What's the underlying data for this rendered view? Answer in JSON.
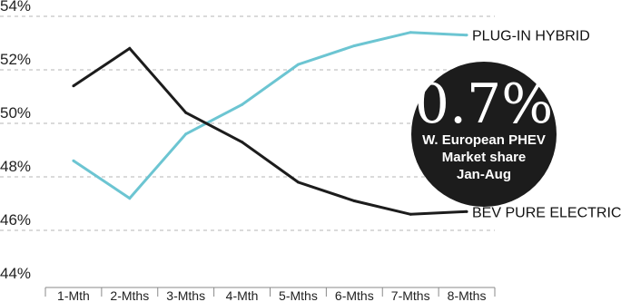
{
  "chart_data": {
    "type": "line",
    "categories": [
      "1-Mth",
      "2-Mths",
      "3-Mths",
      "4-Mth",
      "5-Mths",
      "6-Mths",
      "7-Mths",
      "8-Mths"
    ],
    "series": [
      {
        "name": "PLUG-IN HYBRID",
        "values": [
          48.6,
          47.2,
          49.6,
          50.7,
          52.2,
          52.9,
          53.4,
          53.3
        ],
        "color": "#6cc5d2"
      },
      {
        "name": "BEV PURE ELECTRIC",
        "values": [
          51.4,
          52.8,
          50.4,
          49.3,
          47.8,
          47.1,
          46.6,
          46.7
        ],
        "color": "#1c1c1c"
      }
    ],
    "y_ticks": [
      "44%",
      "46%",
      "48%",
      "50%",
      "52%",
      "54%"
    ],
    "ylim": [
      44,
      54
    ],
    "grid": "horizontal dashed",
    "callout": {
      "value": "0.7%",
      "lines": [
        "W. European PHEV",
        "Market share",
        "Jan-Aug"
      ]
    }
  }
}
